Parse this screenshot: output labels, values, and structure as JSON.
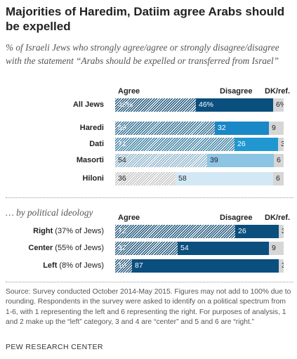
{
  "title": "Majorities of Haredim, Datiim agree Arabs should be expelled",
  "subtitle": "% of Israeli Jews who strongly agree/agree or strongly disagree/disagree with the statement “Arabs should be expelled or transferred from Israel”",
  "columns": {
    "agree": "Agree",
    "disagree": "Disagree",
    "dk": "DK/ref."
  },
  "section2_title": "… by political ideology",
  "source": "Source: Survey conducted October 2014-May 2015. Figures may not add to 100% due to rounding. Respondents in the survey were asked to identify on a political spectrum from 1-6, with 1 representing the left and 6 representing the right. For purposes of analysis, 1 and 2 make up the “left” category, 3 and 4 are “center” and 5 and 6 are “right.”",
  "brand": "PEW RESEARCH CENTER",
  "colors": {
    "all_agree": "#1c5478",
    "all_disagree": "#0a4f7e",
    "haredi_agree": "#2b6b8f",
    "haredi_disagree": "#1a87c6",
    "dati_agree": "#3a7ea1",
    "dati_disagree": "#2097d0",
    "masorti_agree": "#8fb4cb",
    "masorti_disagree": "#8cc4e4",
    "hiloni_agree": "#c6c6c6",
    "hiloni_disagree": "#d3e8f5",
    "ideo_agree": "#1c5478",
    "ideo_disagree": "#0a4f7e",
    "dk": "#d6d6d6"
  },
  "chart_data": [
    {
      "type": "bar",
      "stacked": true,
      "orientation": "horizontal",
      "series_names": [
        "Agree",
        "Disagree",
        "DK/ref."
      ],
      "rows": [
        {
          "label": "All Jews",
          "agree": 48,
          "disagree": 46,
          "dk": 6,
          "agree_text": "48%",
          "disagree_text": "46%",
          "dk_text": "6%"
        },
        {
          "label": "Haredi",
          "agree": 59,
          "disagree": 32,
          "dk": 9,
          "agree_text": "59",
          "disagree_text": "32",
          "dk_text": "9"
        },
        {
          "label": "Dati",
          "agree": 71,
          "disagree": 26,
          "dk": 3,
          "agree_text": "71",
          "disagree_text": "26",
          "dk_text": "3"
        },
        {
          "label": "Masorti",
          "agree": 54,
          "disagree": 39,
          "dk": 6,
          "agree_text": "54",
          "disagree_text": "39",
          "dk_text": "6"
        },
        {
          "label": "Hiloni",
          "agree": 36,
          "disagree": 58,
          "dk": 6,
          "agree_text": "36",
          "disagree_text": "58",
          "dk_text": "6"
        }
      ]
    },
    {
      "type": "bar",
      "stacked": true,
      "orientation": "horizontal",
      "series_names": [
        "Agree",
        "Disagree",
        "DK/ref."
      ],
      "rows": [
        {
          "label": "Right",
          "label_note": "(37% of Jews)",
          "agree": 72,
          "disagree": 26,
          "dk": 3,
          "agree_text": "72",
          "disagree_text": "26",
          "dk_text": "3"
        },
        {
          "label": "Center",
          "label_note": "(55% of Jews)",
          "agree": 37,
          "disagree": 54,
          "dk": 9,
          "agree_text": "37",
          "disagree_text": "54",
          "dk_text": "9"
        },
        {
          "label": "Left",
          "label_note": "(8% of Jews)",
          "agree": 10,
          "disagree": 87,
          "dk": 3,
          "agree_text": "10",
          "disagree_text": "87",
          "dk_text": "3"
        }
      ]
    }
  ]
}
